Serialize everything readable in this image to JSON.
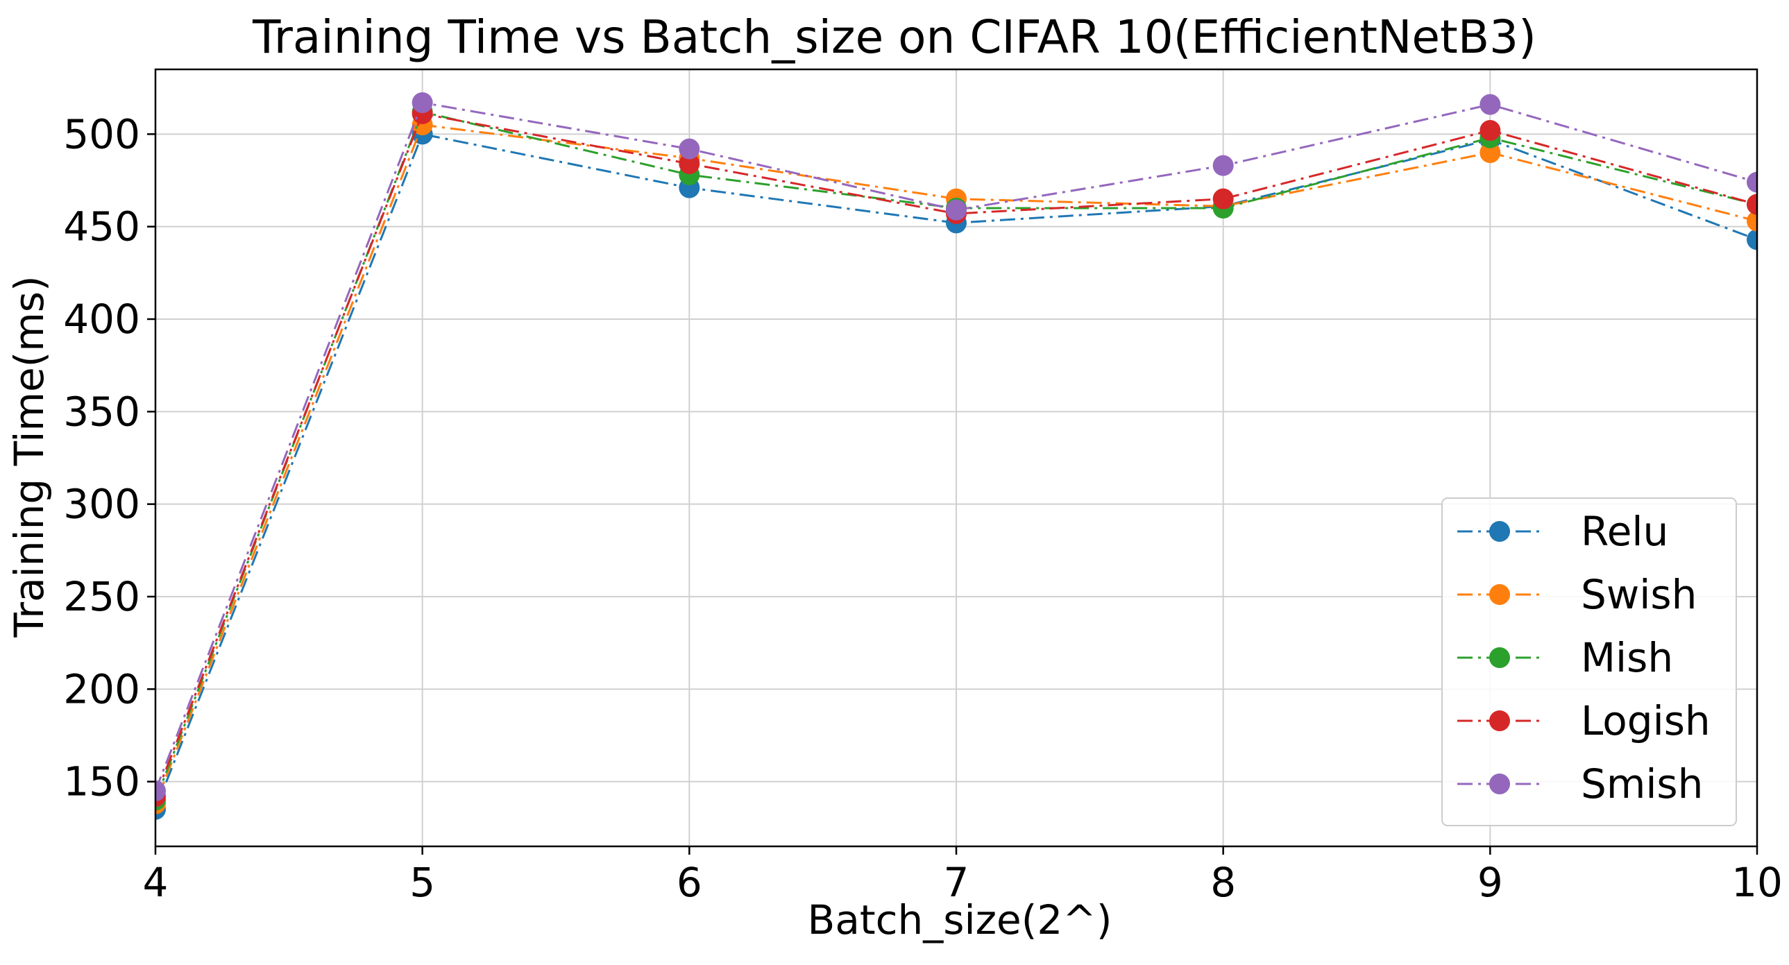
{
  "chart_data": {
    "type": "line",
    "title": "Training Time vs Batch_size on CIFAR 10(EfficientNetB3)",
    "xlabel": "Batch_size(2^)",
    "ylabel": "Training Time(ms)",
    "x": [
      4,
      5,
      6,
      7,
      8,
      9,
      10
    ],
    "xticks": [
      "4",
      "5",
      "6",
      "7",
      "8",
      "9",
      "10"
    ],
    "yticks": [
      "150",
      "200",
      "250",
      "300",
      "350",
      "400",
      "450",
      "500"
    ],
    "xlim": [
      4,
      10
    ],
    "ylim": [
      115,
      535
    ],
    "grid": true,
    "legend_position": "lower-right",
    "line_style": "dash-dot",
    "marker": "circle",
    "series": [
      {
        "name": "Relu",
        "color": "#1f77b4",
        "values": [
          135,
          500,
          471,
          452,
          461,
          497,
          443
        ]
      },
      {
        "name": "Swish",
        "color": "#ff7f0e",
        "values": [
          138,
          505,
          487,
          465,
          461,
          490,
          453
        ]
      },
      {
        "name": "Mish",
        "color": "#2ca02c",
        "values": [
          140,
          512,
          478,
          460,
          460,
          498,
          462
        ]
      },
      {
        "name": "Logish",
        "color": "#d62728",
        "values": [
          142,
          511,
          484,
          457,
          465,
          502,
          462
        ]
      },
      {
        "name": "Smish",
        "color": "#9467bd",
        "values": [
          145,
          517,
          492,
          459,
          483,
          516,
          474
        ]
      }
    ]
  }
}
